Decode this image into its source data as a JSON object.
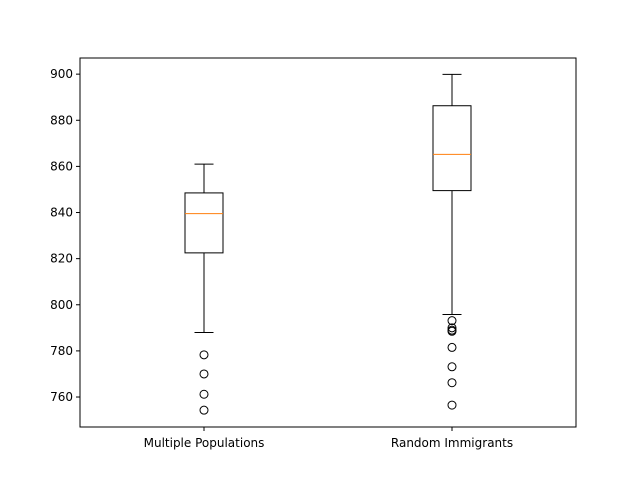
{
  "chart_data": {
    "type": "boxplot",
    "title": "",
    "xlabel": "",
    "ylabel": "",
    "ylim": [
      747,
      907
    ],
    "yticks": [
      760,
      780,
      800,
      820,
      840,
      860,
      880,
      900
    ],
    "grid": false,
    "categories": [
      "Multiple Populations",
      "Random Immigrants"
    ],
    "boxes": [
      {
        "name": "Multiple Populations",
        "whisker_low": 788,
        "q1": 822.5,
        "median": 839.5,
        "q3": 848.5,
        "whisker_high": 861,
        "outliers": [
          778.3,
          770,
          761.2,
          754.3
        ]
      },
      {
        "name": "Random Immigrants",
        "whisker_low": 795.8,
        "q1": 849.5,
        "median": 865.2,
        "q3": 886.3,
        "whisker_high": 899.9,
        "outliers": [
          793.1,
          790,
          789,
          788.5,
          781.5,
          773.1,
          766.2,
          756.5
        ]
      }
    ],
    "colors": {
      "box": "#000000",
      "median": "#ff7f0e",
      "background": "#ffffff"
    }
  }
}
